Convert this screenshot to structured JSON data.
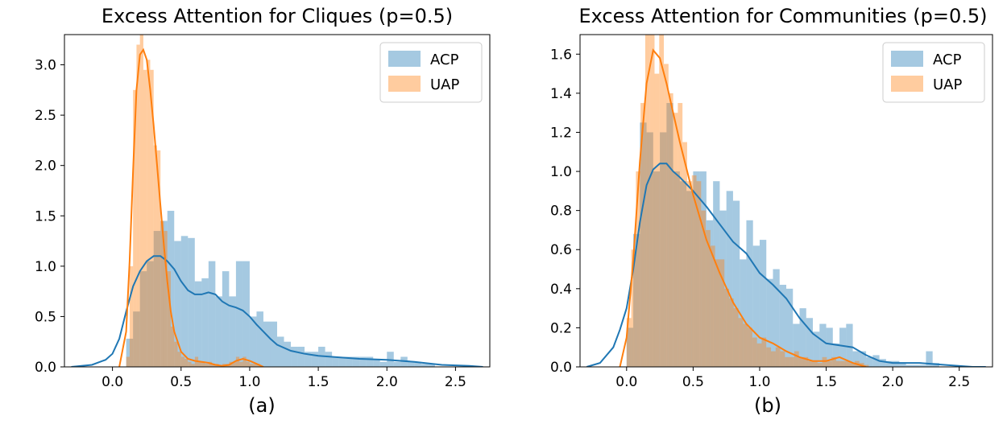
{
  "chart_data": [
    {
      "type": "histogram+kde",
      "title": "Excess Attention for Cliques (p=0.5)",
      "caption": "(a)",
      "xlim": [
        -0.35,
        2.75
      ],
      "ylim": [
        0,
        3.3
      ],
      "xticks": [
        "0.0",
        "0.5",
        "1.0",
        "1.5",
        "2.0",
        "2.5"
      ],
      "xtick_values": [
        0.0,
        0.5,
        1.0,
        1.5,
        2.0,
        2.5
      ],
      "yticks": [
        "0.0",
        "0.5",
        "1.0",
        "1.5",
        "2.0",
        "2.5",
        "3.0"
      ],
      "ytick_values": [
        0.0,
        0.5,
        1.0,
        1.5,
        2.0,
        2.5,
        3.0
      ],
      "legend_position": "top-right",
      "series": [
        {
          "name": "ACP",
          "color": "#1f77b4",
          "bin_width": 0.05,
          "bin_starts": [
            0.1,
            0.15,
            0.2,
            0.25,
            0.3,
            0.35,
            0.4,
            0.45,
            0.5,
            0.55,
            0.6,
            0.65,
            0.7,
            0.75,
            0.8,
            0.85,
            0.9,
            0.95,
            1.0,
            1.05,
            1.1,
            1.15,
            1.2,
            1.25,
            1.3,
            1.35,
            1.4,
            1.45,
            1.5,
            1.55,
            1.6,
            1.65,
            1.7,
            1.75,
            1.8,
            1.85,
            1.9,
            1.95,
            2.0,
            2.05,
            2.1,
            2.15,
            2.2,
            2.25,
            2.3
          ],
          "heights": [
            0.28,
            0.55,
            0.95,
            1.05,
            1.35,
            1.45,
            1.55,
            1.25,
            1.3,
            1.28,
            0.85,
            0.88,
            1.05,
            0.7,
            0.95,
            0.7,
            1.05,
            1.05,
            0.5,
            0.55,
            0.45,
            0.45,
            0.3,
            0.25,
            0.2,
            0.2,
            0.15,
            0.15,
            0.2,
            0.15,
            0.1,
            0.1,
            0.1,
            0.1,
            0.1,
            0.1,
            0.08,
            0.05,
            0.15,
            0.05,
            0.1,
            0.05,
            0.05,
            0.03,
            0.03
          ],
          "kde_x": [
            -0.3,
            -0.15,
            -0.05,
            0.0,
            0.05,
            0.1,
            0.15,
            0.2,
            0.25,
            0.3,
            0.35,
            0.4,
            0.45,
            0.5,
            0.55,
            0.6,
            0.65,
            0.7,
            0.75,
            0.8,
            0.85,
            0.9,
            0.95,
            1.0,
            1.05,
            1.1,
            1.15,
            1.2,
            1.3,
            1.4,
            1.5,
            1.6,
            1.8,
            2.0,
            2.2,
            2.4,
            2.6,
            2.7
          ],
          "kde_y": [
            0.0,
            0.02,
            0.07,
            0.13,
            0.28,
            0.55,
            0.8,
            0.95,
            1.05,
            1.1,
            1.1,
            1.05,
            0.97,
            0.85,
            0.76,
            0.72,
            0.72,
            0.74,
            0.72,
            0.65,
            0.61,
            0.59,
            0.56,
            0.5,
            0.42,
            0.35,
            0.28,
            0.22,
            0.16,
            0.13,
            0.11,
            0.1,
            0.08,
            0.07,
            0.05,
            0.02,
            0.01,
            0.0
          ]
        },
        {
          "name": "UAP",
          "color": "#ff7f0e",
          "bin_width": 0.025,
          "bin_starts": [
            0.1,
            0.125,
            0.15,
            0.175,
            0.2,
            0.225,
            0.25,
            0.275,
            0.3,
            0.325,
            0.35,
            0.375,
            0.4,
            0.425,
            0.45,
            0.475,
            0.5,
            0.525,
            0.55,
            0.575,
            0.6,
            0.625,
            0.65,
            0.675,
            0.7,
            0.725,
            0.75,
            0.8,
            0.825,
            0.85,
            0.875,
            0.9,
            0.925,
            0.95,
            0.975,
            1.0,
            1.025,
            1.05
          ],
          "heights": [
            0.1,
            1.0,
            2.75,
            3.2,
            3.3,
            2.95,
            3.05,
            2.95,
            2.2,
            2.15,
            1.45,
            1.35,
            0.95,
            0.4,
            0.25,
            0.15,
            0.1,
            0.08,
            0.05,
            0.03,
            0.1,
            0.05,
            0.05,
            0.03,
            0.05,
            0.03,
            0.03,
            0.03,
            0.03,
            0.05,
            0.05,
            0.1,
            0.05,
            0.1,
            0.05,
            0.03,
            0.03,
            0.03
          ],
          "kde_x": [
            0.05,
            0.1,
            0.125,
            0.15,
            0.175,
            0.2,
            0.225,
            0.25,
            0.275,
            0.3,
            0.325,
            0.35,
            0.375,
            0.4,
            0.425,
            0.45,
            0.5,
            0.55,
            0.6,
            0.65,
            0.7,
            0.75,
            0.8,
            0.85,
            0.9,
            0.95,
            1.0,
            1.05,
            1.1
          ],
          "kde_y": [
            0.0,
            0.35,
            1.05,
            1.95,
            2.75,
            3.1,
            3.15,
            3.05,
            2.75,
            2.4,
            2.0,
            1.6,
            1.2,
            0.85,
            0.55,
            0.35,
            0.15,
            0.08,
            0.06,
            0.05,
            0.04,
            0.02,
            0.01,
            0.02,
            0.06,
            0.08,
            0.06,
            0.03,
            0.0
          ]
        }
      ]
    },
    {
      "type": "histogram+kde",
      "title": "Excess Attention for Communities (p=0.5)",
      "caption": "(b)",
      "xlim": [
        -0.35,
        2.75
      ],
      "ylim": [
        0,
        1.7
      ],
      "xticks": [
        "0.0",
        "0.5",
        "1.0",
        "1.5",
        "2.0",
        "2.5"
      ],
      "xtick_values": [
        0.0,
        0.5,
        1.0,
        1.5,
        2.0,
        2.5
      ],
      "yticks": [
        "0.0",
        "0.2",
        "0.4",
        "0.6",
        "0.8",
        "1.0",
        "1.2",
        "1.4",
        "1.6"
      ],
      "ytick_values": [
        0.0,
        0.2,
        0.4,
        0.6,
        0.8,
        1.0,
        1.2,
        1.4,
        1.6
      ],
      "legend_position": "top-right",
      "series": [
        {
          "name": "ACP",
          "color": "#1f77b4",
          "bin_width": 0.05,
          "bin_starts": [
            0.0,
            0.05,
            0.1,
            0.15,
            0.2,
            0.25,
            0.3,
            0.35,
            0.4,
            0.45,
            0.5,
            0.55,
            0.6,
            0.65,
            0.7,
            0.75,
            0.8,
            0.85,
            0.9,
            0.95,
            1.0,
            1.05,
            1.1,
            1.15,
            1.2,
            1.25,
            1.3,
            1.35,
            1.4,
            1.45,
            1.5,
            1.55,
            1.6,
            1.65,
            1.7,
            1.75,
            1.8,
            1.85,
            1.9,
            1.95,
            2.0,
            2.05,
            2.1,
            2.15,
            2.2,
            2.25,
            2.3
          ],
          "heights": [
            0.2,
            0.68,
            1.25,
            1.2,
            1.0,
            1.2,
            1.35,
            1.0,
            0.95,
            0.9,
            1.0,
            1.0,
            0.75,
            0.95,
            0.8,
            0.9,
            0.85,
            0.55,
            0.75,
            0.62,
            0.65,
            0.45,
            0.5,
            0.42,
            0.4,
            0.22,
            0.3,
            0.25,
            0.18,
            0.22,
            0.2,
            0.12,
            0.2,
            0.22,
            0.08,
            0.08,
            0.05,
            0.06,
            0.04,
            0.03,
            0.03,
            0.02,
            0.01,
            0.01,
            0.01,
            0.08,
            0.02
          ],
          "kde_x": [
            -0.3,
            -0.2,
            -0.1,
            -0.05,
            0.0,
            0.05,
            0.1,
            0.15,
            0.2,
            0.25,
            0.3,
            0.35,
            0.4,
            0.5,
            0.6,
            0.7,
            0.8,
            0.9,
            1.0,
            1.1,
            1.2,
            1.3,
            1.4,
            1.5,
            1.6,
            1.7,
            1.8,
            1.9,
            2.0,
            2.2,
            2.4,
            2.6,
            2.7
          ],
          "kde_y": [
            0.0,
            0.02,
            0.1,
            0.19,
            0.3,
            0.5,
            0.74,
            0.93,
            1.01,
            1.04,
            1.04,
            1.0,
            0.97,
            0.9,
            0.82,
            0.73,
            0.64,
            0.58,
            0.48,
            0.42,
            0.35,
            0.25,
            0.17,
            0.12,
            0.11,
            0.1,
            0.06,
            0.03,
            0.02,
            0.02,
            0.01,
            0.0,
            0.0
          ]
        },
        {
          "name": "UAP",
          "color": "#ff7f0e",
          "bin_width": 0.035,
          "bin_starts": [
            0.0,
            0.035,
            0.07,
            0.105,
            0.14,
            0.175,
            0.21,
            0.245,
            0.28,
            0.315,
            0.35,
            0.385,
            0.42,
            0.455,
            0.49,
            0.525,
            0.56,
            0.595,
            0.63,
            0.665,
            0.7,
            0.735,
            0.77,
            0.805,
            0.84,
            0.875,
            0.91,
            0.945,
            0.98,
            1.015,
            1.05,
            1.085,
            1.12,
            1.155,
            1.19,
            1.225,
            1.26,
            1.295,
            1.33,
            1.365,
            1.4,
            1.435,
            1.47,
            1.505,
            1.54,
            1.575,
            1.61,
            1.645,
            1.68,
            1.715,
            1.75,
            1.785
          ],
          "heights": [
            0.25,
            0.6,
            1.0,
            1.35,
            1.7,
            1.7,
            1.5,
            1.7,
            1.55,
            1.4,
            1.3,
            1.35,
            1.15,
            0.95,
            0.98,
            0.95,
            0.8,
            0.7,
            0.62,
            0.55,
            0.55,
            0.4,
            0.35,
            0.3,
            0.25,
            0.22,
            0.2,
            0.15,
            0.12,
            0.15,
            0.1,
            0.08,
            0.1,
            0.08,
            0.05,
            0.05,
            0.08,
            0.05,
            0.05,
            0.03,
            0.03,
            0.02,
            0.05,
            0.03,
            0.05,
            0.03,
            0.03,
            0.03,
            0.02,
            0.03,
            0.02,
            0.01
          ],
          "kde_x": [
            -0.05,
            0.0,
            0.05,
            0.1,
            0.15,
            0.2,
            0.25,
            0.3,
            0.35,
            0.4,
            0.5,
            0.6,
            0.7,
            0.8,
            0.9,
            1.0,
            1.1,
            1.2,
            1.3,
            1.4,
            1.5,
            1.6,
            1.7,
            1.8
          ],
          "kde_y": [
            0.0,
            0.15,
            0.55,
            1.05,
            1.45,
            1.62,
            1.58,
            1.45,
            1.3,
            1.15,
            0.88,
            0.65,
            0.48,
            0.33,
            0.22,
            0.15,
            0.12,
            0.08,
            0.05,
            0.03,
            0.03,
            0.05,
            0.02,
            0.0
          ]
        }
      ]
    }
  ]
}
